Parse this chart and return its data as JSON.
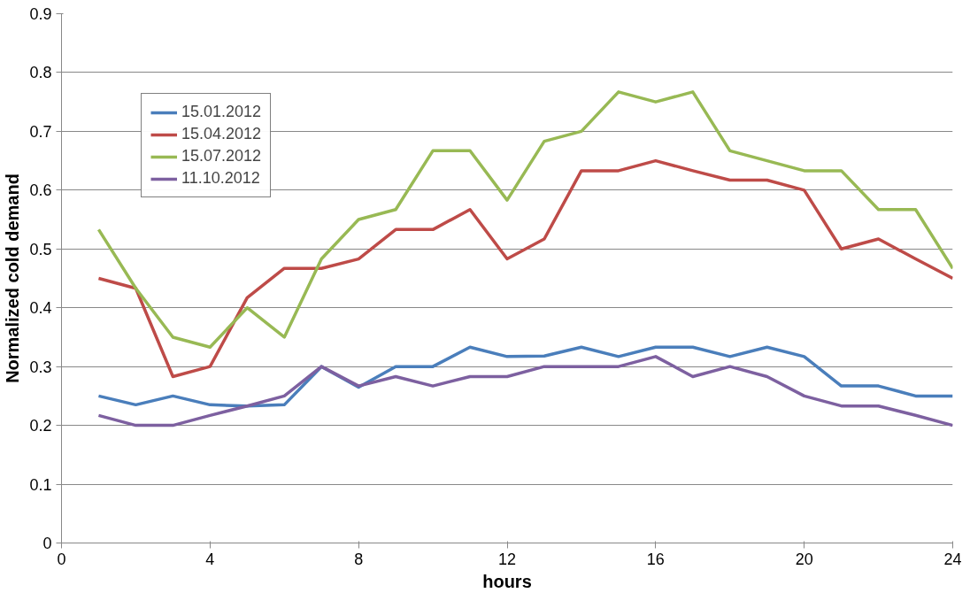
{
  "chart_data": {
    "type": "line",
    "xlabel": "hours",
    "ylabel": "Normalized cold demand",
    "x": [
      1,
      2,
      3,
      4,
      5,
      6,
      7,
      8,
      9,
      10,
      11,
      12,
      13,
      14,
      15,
      16,
      17,
      18,
      19,
      20,
      21,
      22,
      23,
      24
    ],
    "xlim": [
      0,
      24
    ],
    "xticks": [
      0,
      4,
      8,
      12,
      16,
      20,
      24
    ],
    "ylim": [
      0,
      0.9
    ],
    "yticks": [
      0,
      0.1,
      0.2,
      0.3,
      0.4,
      0.5,
      0.6,
      0.7,
      0.8,
      0.9
    ],
    "grid": "y",
    "legend": "top left",
    "marker": "none",
    "line_style": "solid",
    "series": [
      {
        "name": "15.01.2012",
        "color": "#4a7ebb",
        "values": [
          0.25,
          0.235,
          0.25,
          0.235,
          0.233,
          0.235,
          0.3,
          0.265,
          0.3,
          0.3,
          0.333,
          0.317,
          0.318,
          0.333,
          0.317,
          0.333,
          0.333,
          0.317,
          0.333,
          0.317,
          0.267,
          0.267,
          0.25,
          0.25
        ]
      },
      {
        "name": "15.04.2012",
        "color": "#be4b48",
        "values": [
          0.45,
          0.433,
          0.283,
          0.3,
          0.417,
          0.467,
          0.467,
          0.483,
          0.533,
          0.533,
          0.567,
          0.483,
          0.517,
          0.633,
          0.633,
          0.65,
          0.633,
          0.617,
          0.617,
          0.6,
          0.5,
          0.517,
          0.483,
          0.45
        ]
      },
      {
        "name": "15.07.2012",
        "color": "#98b954",
        "values": [
          0.533,
          0.433,
          0.35,
          0.333,
          0.4,
          0.35,
          0.483,
          0.55,
          0.567,
          0.667,
          0.667,
          0.583,
          0.683,
          0.7,
          0.767,
          0.75,
          0.767,
          0.667,
          0.65,
          0.633,
          0.633,
          0.567,
          0.567,
          0.467
        ]
      },
      {
        "name": "11.10.2012",
        "color": "#7d60a0",
        "values": [
          0.217,
          0.2,
          0.2,
          0.217,
          0.233,
          0.25,
          0.3,
          0.267,
          0.283,
          0.267,
          0.283,
          0.283,
          0.3,
          0.3,
          0.3,
          0.317,
          0.283,
          0.3,
          0.283,
          0.25,
          0.233,
          0.233,
          0.217,
          0.2
        ]
      }
    ]
  }
}
